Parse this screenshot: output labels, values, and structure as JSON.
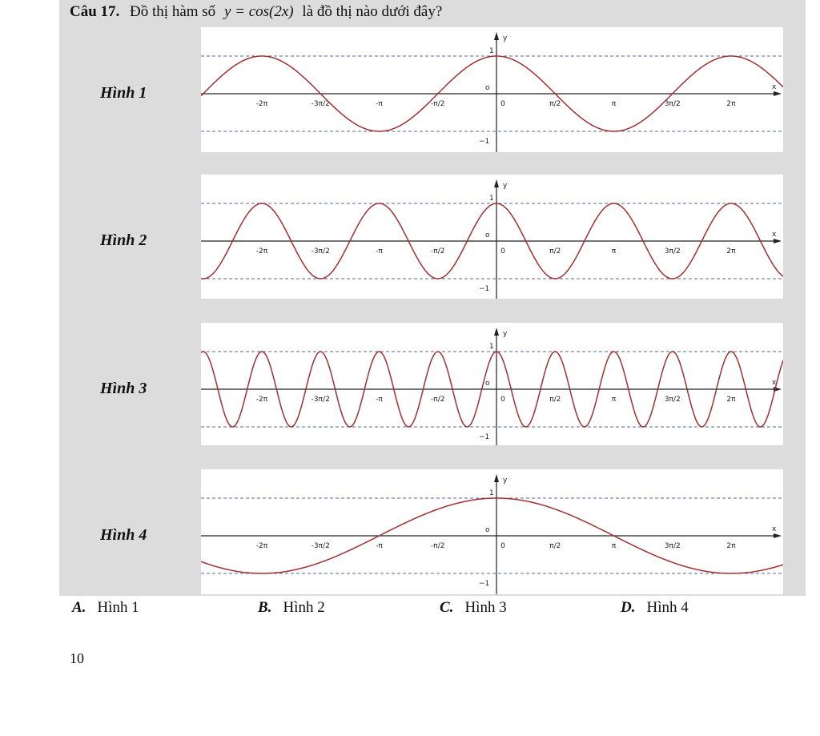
{
  "question": {
    "label": "Câu 17.",
    "text_before": "Đồ thị hàm số",
    "formula": "y = cos(2x)",
    "text_after": "là đồ thị nào dưới đây?"
  },
  "axis": {
    "x_ticks": [
      "-2π",
      "-3π/2",
      "-π",
      "-π/2",
      "0",
      "π/2",
      "π",
      "3π/2",
      "2π"
    ],
    "x_label": "x",
    "y_label": "y",
    "y_top": "1",
    "y_bottom": "−1",
    "origin": "o"
  },
  "figures": [
    {
      "label": "Hình 1"
    },
    {
      "label": "Hình 2"
    },
    {
      "label": "Hình 3"
    },
    {
      "label": "Hình 4"
    }
  ],
  "options": [
    {
      "letter": "A.",
      "text": "Hình 1"
    },
    {
      "letter": "B.",
      "text": "Hình 2"
    },
    {
      "letter": "C.",
      "text": "Hình 3"
    },
    {
      "letter": "D.",
      "text": "Hình 4"
    }
  ],
  "page_number": "10"
}
